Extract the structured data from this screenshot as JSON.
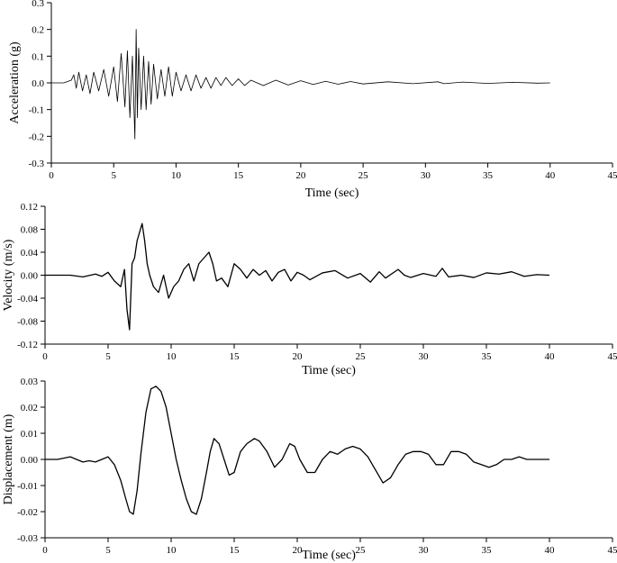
{
  "chart_data": [
    {
      "type": "line",
      "xlabel": "Time (sec)",
      "ylabel": "Acceleration (g)",
      "xlim": [
        0,
        45
      ],
      "ylim": [
        -0.3,
        0.3
      ],
      "xticks": [
        0,
        5,
        10,
        15,
        20,
        25,
        30,
        35,
        40,
        45
      ],
      "yticks": [
        -0.3,
        -0.2,
        -0.1,
        0.0,
        0.1,
        0.2,
        0.3
      ],
      "xtick_labels": [
        "0",
        "5",
        "10",
        "15",
        "20",
        "25",
        "30",
        "35",
        "40",
        "45"
      ],
      "ytick_labels": [
        "-0.3",
        "-0.2",
        "-0.1",
        "0.0",
        "0.1",
        "0.2",
        "0.3"
      ],
      "grid": false,
      "series": [
        {
          "color": "#000000",
          "x": [
            0,
            1.0,
            1.6,
            1.8,
            2.0,
            2.2,
            2.5,
            2.8,
            3.1,
            3.4,
            3.8,
            4.2,
            4.6,
            5.0,
            5.3,
            5.6,
            5.9,
            6.1,
            6.3,
            6.5,
            6.7,
            6.8,
            6.9,
            7.0,
            7.2,
            7.4,
            7.6,
            7.8,
            8.0,
            8.2,
            8.5,
            8.8,
            9.1,
            9.4,
            9.7,
            10.0,
            10.4,
            10.8,
            11.2,
            11.6,
            12.0,
            12.4,
            12.8,
            13.2,
            13.6,
            14.0,
            14.5,
            15.0,
            15.5,
            16.0,
            17.0,
            18.0,
            19.0,
            20.0,
            21.0,
            22.0,
            23.0,
            24.0,
            25.0,
            27.0,
            29.0,
            31.0,
            31.5,
            33.0,
            35.0,
            37.0,
            39.0,
            40.0
          ],
          "y": [
            0,
            0.0,
            0.01,
            0.03,
            -0.02,
            0.04,
            -0.03,
            0.03,
            -0.04,
            0.04,
            -0.03,
            0.05,
            -0.05,
            0.06,
            -0.07,
            0.11,
            -0.09,
            0.12,
            -0.13,
            0.1,
            -0.21,
            0.2,
            -0.13,
            0.13,
            -0.1,
            0.1,
            -0.1,
            0.08,
            -0.08,
            0.07,
            -0.06,
            0.05,
            -0.05,
            0.06,
            -0.05,
            0.04,
            -0.03,
            0.03,
            -0.03,
            0.03,
            -0.02,
            0.02,
            -0.02,
            0.02,
            -0.01,
            0.02,
            -0.01,
            0.015,
            -0.01,
            0.01,
            -0.01,
            0.01,
            -0.008,
            0.008,
            -0.006,
            0.006,
            -0.005,
            0.005,
            -0.004,
            0.004,
            -0.003,
            0.004,
            -0.003,
            0.003,
            -0.002,
            0.002,
            -0.001,
            0.0
          ]
        }
      ]
    },
    {
      "type": "line",
      "xlabel": "Time (sec)",
      "ylabel": "Velocity (m/s)",
      "xlim": [
        0,
        45
      ],
      "ylim": [
        -0.12,
        0.12
      ],
      "xticks": [
        0,
        5,
        10,
        15,
        20,
        25,
        30,
        35,
        40,
        45
      ],
      "yticks": [
        -0.12,
        -0.08,
        -0.04,
        0.0,
        0.04,
        0.08,
        0.12
      ],
      "xtick_labels": [
        "0",
        "5",
        "10",
        "15",
        "20",
        "25",
        "30",
        "35",
        "40",
        "45"
      ],
      "ytick_labels": [
        "-0.12",
        "-0.08",
        "-0.04",
        "0.00",
        "0.04",
        "0.08",
        "0.12"
      ],
      "grid": false,
      "series": [
        {
          "color": "#000000",
          "x": [
            0,
            1.0,
            2.0,
            3.0,
            4.0,
            4.5,
            5.0,
            5.5,
            6.0,
            6.3,
            6.5,
            6.7,
            6.9,
            7.1,
            7.3,
            7.5,
            7.7,
            7.9,
            8.1,
            8.3,
            8.6,
            9.0,
            9.4,
            9.8,
            10.2,
            10.6,
            11.0,
            11.4,
            11.8,
            12.2,
            12.6,
            13.0,
            13.3,
            13.6,
            14.0,
            14.5,
            15.0,
            15.5,
            16.0,
            16.5,
            17.0,
            17.5,
            18.0,
            18.5,
            19.0,
            19.5,
            20.0,
            20.5,
            21.0,
            22.0,
            23.0,
            24.0,
            25.0,
            25.8,
            26.5,
            27.0,
            28.0,
            28.5,
            29.0,
            30.0,
            31.0,
            31.5,
            32.0,
            33.0,
            34.0,
            35.0,
            36.0,
            37.0,
            38.0,
            39.0,
            40.0
          ],
          "y": [
            0,
            0.0,
            0.0,
            -0.003,
            0.002,
            -0.002,
            0.005,
            -0.01,
            -0.02,
            0.01,
            -0.06,
            -0.095,
            0.02,
            0.03,
            0.06,
            0.075,
            0.09,
            0.06,
            0.02,
            0.0,
            -0.02,
            -0.03,
            0.0,
            -0.04,
            -0.02,
            -0.01,
            0.01,
            0.02,
            -0.01,
            0.02,
            0.03,
            0.04,
            0.02,
            -0.01,
            -0.005,
            -0.02,
            0.02,
            0.01,
            -0.005,
            0.01,
            0.0,
            0.008,
            -0.01,
            0.005,
            0.01,
            -0.01,
            0.005,
            0.0,
            -0.008,
            0.004,
            0.008,
            -0.005,
            0.003,
            -0.012,
            0.006,
            -0.005,
            0.01,
            0.0,
            -0.004,
            0.003,
            -0.002,
            0.012,
            -0.003,
            0.0,
            -0.004,
            0.004,
            0.002,
            0.006,
            -0.002,
            0.001,
            0.0
          ]
        }
      ]
    },
    {
      "type": "line",
      "xlabel": "Time (sec)",
      "ylabel": "Displacement (m)",
      "xlim": [
        0,
        45
      ],
      "ylim": [
        -0.03,
        0.03
      ],
      "xticks": [
        0,
        5,
        10,
        15,
        20,
        25,
        30,
        35,
        40,
        45
      ],
      "yticks": [
        -0.03,
        -0.02,
        -0.01,
        0.0,
        0.01,
        0.02,
        0.03
      ],
      "xtick_labels": [
        "0",
        "5",
        "10",
        "15",
        "20",
        "25",
        "30",
        "35",
        "40",
        "45"
      ],
      "ytick_labels": [
        "-0.03",
        "-0.02",
        "-0.01",
        "0.00",
        "0.01",
        "0.02",
        "0.03"
      ],
      "grid": false,
      "series": [
        {
          "color": "#000000",
          "x": [
            0,
            1.0,
            2.0,
            2.5,
            3.0,
            3.5,
            4.0,
            4.5,
            5.0,
            5.5,
            6.0,
            6.4,
            6.7,
            7.0,
            7.3,
            7.6,
            8.0,
            8.4,
            8.8,
            9.2,
            9.6,
            10.0,
            10.4,
            10.8,
            11.2,
            11.6,
            12.0,
            12.4,
            12.8,
            13.1,
            13.4,
            13.8,
            14.2,
            14.6,
            15.0,
            15.5,
            16.0,
            16.6,
            17.0,
            17.6,
            18.2,
            18.8,
            19.4,
            19.8,
            20.2,
            20.8,
            21.4,
            22.0,
            22.6,
            23.2,
            23.8,
            24.4,
            25.0,
            25.6,
            26.2,
            26.8,
            27.4,
            28.0,
            28.6,
            29.2,
            29.8,
            30.4,
            31.0,
            31.6,
            32.2,
            32.8,
            33.4,
            34.0,
            34.6,
            35.2,
            35.8,
            36.4,
            37.0,
            37.6,
            38.2,
            39.0,
            40.0
          ],
          "y": [
            0,
            0.0,
            0.001,
            0.0,
            -0.001,
            -0.0005,
            -0.001,
            0.0,
            0.001,
            -0.002,
            -0.008,
            -0.015,
            -0.02,
            -0.021,
            -0.012,
            0.002,
            0.018,
            0.027,
            0.028,
            0.026,
            0.02,
            0.01,
            0.0,
            -0.008,
            -0.015,
            -0.02,
            -0.021,
            -0.015,
            -0.005,
            0.003,
            0.008,
            0.006,
            0.0,
            -0.006,
            -0.005,
            0.003,
            0.006,
            0.008,
            0.007,
            0.003,
            -0.003,
            0.0,
            0.006,
            0.005,
            0.0,
            -0.005,
            -0.005,
            0.0,
            0.003,
            0.002,
            0.004,
            0.005,
            0.004,
            0.001,
            -0.004,
            -0.009,
            -0.007,
            -0.002,
            0.002,
            0.003,
            0.003,
            0.002,
            -0.002,
            -0.002,
            0.003,
            0.003,
            0.002,
            -0.001,
            -0.002,
            -0.003,
            -0.002,
            0.0,
            0.0,
            0.001,
            0.0,
            0.0,
            0.0
          ]
        }
      ]
    }
  ]
}
